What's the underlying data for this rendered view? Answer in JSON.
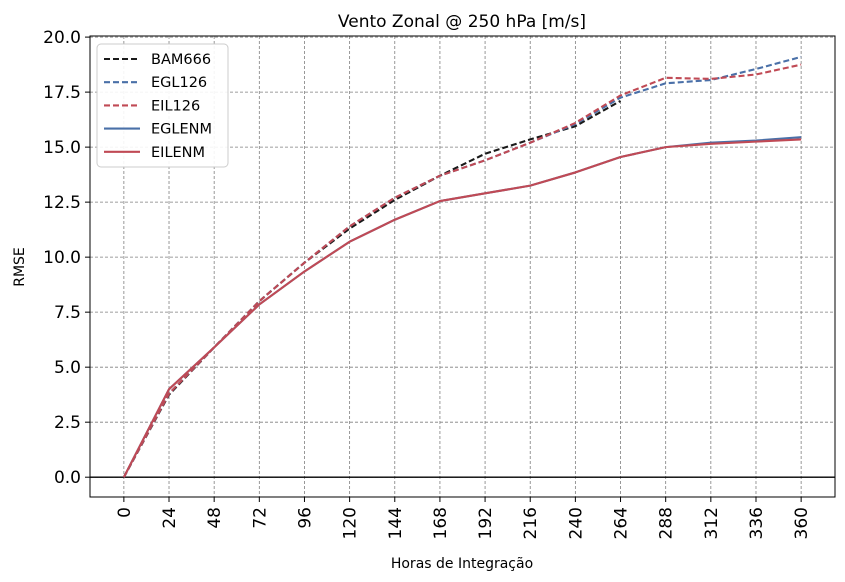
{
  "chart_data": {
    "type": "line",
    "title": "Vento Zonal @ 250 hPa [m/s]",
    "xlabel": "Horas de Integração",
    "ylabel": "RMSE",
    "x": [
      0,
      24,
      48,
      72,
      96,
      120,
      144,
      168,
      192,
      216,
      240,
      264,
      288,
      312,
      336,
      360
    ],
    "xticks": [
      "0",
      "24",
      "48",
      "72",
      "96",
      "120",
      "144",
      "168",
      "192",
      "216",
      "240",
      "264",
      "288",
      "312",
      "336",
      "360"
    ],
    "yticks": [
      0.0,
      2.5,
      5.0,
      7.5,
      10.0,
      12.5,
      15.0,
      17.5,
      20.0
    ],
    "ytick_labels": [
      "0.0",
      "2.5",
      "5.0",
      "7.5",
      "10.0",
      "12.5",
      "15.0",
      "17.5",
      "20.0"
    ],
    "xlim": [
      -18,
      378
    ],
    "ylim": [
      -0.9,
      20.05
    ],
    "grid": true,
    "legend_position": "upper-left",
    "series": [
      {
        "name": "BAM666",
        "color": "#1a1a1a",
        "style": "dashed",
        "values": [
          0,
          3.75,
          5.9,
          8.0,
          9.75,
          11.3,
          12.6,
          13.7,
          14.7,
          15.35,
          15.95,
          17.1,
          null,
          null,
          null,
          null
        ]
      },
      {
        "name": "EGL126",
        "color": "#4a70a8",
        "style": "dashed",
        "values": [
          0,
          3.8,
          5.9,
          8.0,
          9.75,
          11.4,
          12.7,
          13.7,
          14.4,
          15.2,
          16.05,
          17.25,
          17.9,
          18.05,
          18.55,
          19.1
        ]
      },
      {
        "name": "EIL126",
        "color": "#c04a55",
        "style": "dashed",
        "values": [
          0,
          3.8,
          5.9,
          8.0,
          9.75,
          11.4,
          12.7,
          13.7,
          14.4,
          15.2,
          16.1,
          17.35,
          18.15,
          18.1,
          18.3,
          18.75
        ]
      },
      {
        "name": "EGLENM",
        "color": "#4a70a8",
        "style": "solid",
        "values": [
          0,
          4.0,
          5.9,
          7.85,
          9.35,
          10.7,
          11.7,
          12.55,
          12.9,
          13.25,
          13.85,
          14.55,
          15.0,
          15.2,
          15.3,
          15.45
        ]
      },
      {
        "name": "EILENM",
        "color": "#c04a55",
        "style": "solid",
        "values": [
          0,
          4.0,
          5.9,
          7.85,
          9.35,
          10.7,
          11.7,
          12.55,
          12.9,
          13.25,
          13.85,
          14.55,
          15.0,
          15.15,
          15.25,
          15.35
        ]
      }
    ]
  }
}
